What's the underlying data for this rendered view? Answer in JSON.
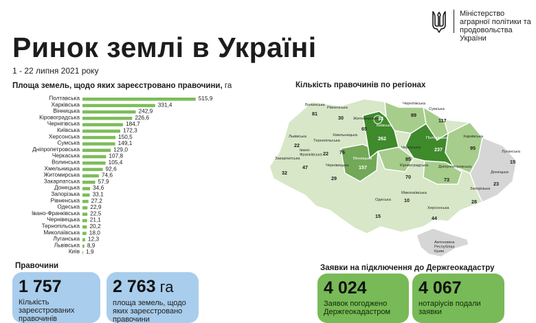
{
  "ministry": {
    "name": "Міністерство\nаграрної політики та\nпродовольства України",
    "colors": {
      "blue": "#1f5aa6",
      "yellow": "#f2c417"
    }
  },
  "title": "Ринок землі в Україні",
  "date": "1 - 22 липня 2021 року",
  "bar_section": {
    "title": "Площа земель, щодо яких зареєстровано правочини,",
    "unit": "га"
  },
  "map_section": {
    "title": "Кількість правочинів по регіонах"
  },
  "chart_data": [
    {
      "type": "bar",
      "orientation": "horizontal",
      "title": "Площа земель, щодо яких зареєстровано правочини, га",
      "categories": [
        "Полтавська",
        "Харківська",
        "Вінницька",
        "Кіровоградська",
        "Чернігівська",
        "Київська",
        "Херсонська",
        "Сумська",
        "Дніпропетровська",
        "Черкаська",
        "Волинська",
        "Хмельницька",
        "Житомирська",
        "Закарпатська",
        "Донецька",
        "Запорізька",
        "Рівненська",
        "Одеська",
        "Івано-Франківська",
        "Чернівецька",
        "Тернопільська",
        "Миколаївська",
        "Луганська",
        "Львівська",
        "Київ"
      ],
      "values": [
        515.9,
        331.4,
        242.9,
        226.6,
        184.7,
        172.3,
        150.5,
        149.1,
        129.0,
        107.8,
        105.4,
        92.6,
        74.6,
        57.9,
        34.6,
        33.1,
        27.2,
        22.9,
        22.5,
        21.1,
        20.2,
        18.0,
        12.3,
        8.9,
        1.9
      ],
      "value_labels": [
        "515,9",
        "331,4",
        "242,9",
        "226,6",
        "184,7",
        "172,3",
        "150,5",
        "149,1",
        "129,0",
        "107,8",
        "105,4",
        "92,6",
        "74,6",
        "57,9",
        "34,6",
        "33,1",
        "27,2",
        "22,9",
        "22,5",
        "21,1",
        "20,2",
        "18,0",
        "12,3",
        "8,9",
        "1,9"
      ],
      "xlim": [
        0,
        520
      ],
      "grid": false,
      "bar_color": "#7cbd5a"
    },
    {
      "type": "map",
      "title": "Кількість правочинів по регіонах",
      "regions": [
        {
          "name": "Волинська",
          "count": "81",
          "shade": 1
        },
        {
          "name": "Рівненська",
          "count": "30",
          "shade": 1
        },
        {
          "name": "Житомирська",
          "count": "65",
          "shade": 1
        },
        {
          "name": "Київ",
          "count": "33",
          "shade": 4
        },
        {
          "name": "Київська",
          "count": "262",
          "shade": 4
        },
        {
          "name": "Чернігівська",
          "count": "89",
          "shade": 2
        },
        {
          "name": "Сумська",
          "count": "117",
          "shade": 2
        },
        {
          "name": "Полтавська",
          "count": "237",
          "shade": 4
        },
        {
          "name": "Харківська",
          "count": "95",
          "shade": 2
        },
        {
          "name": "Луганська",
          "count": "15",
          "shade": 0
        },
        {
          "name": "Донецька",
          "count": "23",
          "shade": 0
        },
        {
          "name": "Львівська",
          "count": "22",
          "shade": 1
        },
        {
          "name": "Тернопільська",
          "count": "22",
          "shade": 1
        },
        {
          "name": "Хмельницька",
          "count": "76",
          "shade": 1
        },
        {
          "name": "Вінницька",
          "count": "157",
          "shade": 3
        },
        {
          "name": "Черкаська",
          "count": "85",
          "shade": 2
        },
        {
          "name": "Кіровоградська",
          "count": "70",
          "shade": 1
        },
        {
          "name": "Дніпропетровська",
          "count": "73",
          "shade": 2
        },
        {
          "name": "Закарпатська",
          "count": "32",
          "shade": 1
        },
        {
          "name": "Івано-Франківська",
          "count": "47",
          "shade": 1
        },
        {
          "name": "Чернівецька",
          "count": "29",
          "shade": 1
        },
        {
          "name": "Одеська",
          "count": "15",
          "shade": 1
        },
        {
          "name": "Миколаївська",
          "count": "10",
          "shade": 1
        },
        {
          "name": "Запорізька",
          "count": "28",
          "shade": 1
        },
        {
          "name": "Херсонська",
          "count": "44",
          "shade": 1
        },
        {
          "name": "Автономна Республіка Крим",
          "count": "",
          "shade": 0
        }
      ],
      "shades": [
        "#d6d6d6",
        "#d7e7c7",
        "#a6cd8b",
        "#72a858",
        "#3f8a2b"
      ]
    }
  ],
  "parties": {
    "label": "Правочини",
    "cards": [
      {
        "value": "1 757",
        "unit": "",
        "text": "Кількість\nзареєстрованих\nправочинів"
      },
      {
        "value": "2 763",
        "unit": " га",
        "text": "площа земель, щодо\nяких зареєстровано\nправочини"
      }
    ]
  },
  "applications": {
    "label": "Заявки на підключення до Держгеокадастру",
    "cards": [
      {
        "value": "4 024",
        "text": "Заявок  погоджено\nДержгеокадастром"
      },
      {
        "value": "4 067",
        "text": "нотаріусів подали\nзаявки"
      }
    ]
  }
}
